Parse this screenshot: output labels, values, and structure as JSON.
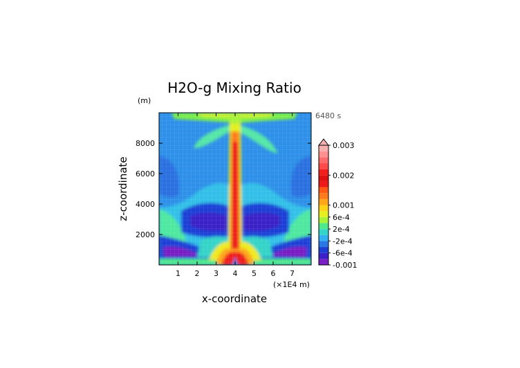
{
  "chart_data": {
    "type": "heatmap",
    "title": "H2O-g Mixing Ratio",
    "xlabel": "x-coordinate",
    "ylabel": "z-coordinate",
    "y_unit": "(m)",
    "x_unit": "(×1E4 m)",
    "time_label": "6480 s",
    "x_ticks": [
      "1",
      "2",
      "3",
      "4",
      "5",
      "6",
      "7"
    ],
    "y_ticks": [
      "2000",
      "4000",
      "6000",
      "8000"
    ],
    "xlim": [
      0,
      8
    ],
    "ylim": [
      0,
      10000
    ],
    "x_tick_values": [
      1,
      2,
      3,
      4,
      5,
      6,
      7
    ],
    "y_tick_values": [
      2000,
      4000,
      6000,
      8000
    ],
    "colorbar": {
      "labels": [
        "0.003",
        "0.002",
        "0.001",
        "6e-4",
        "2e-4",
        "-2e-4",
        "-6e-4",
        "-0.001"
      ],
      "label_levels": [
        0.003,
        0.002,
        0.001,
        0.0006,
        0.0002,
        -0.0002,
        -0.0006,
        -0.001
      ],
      "levels": [
        -0.001,
        -0.0008,
        -0.0006,
        -0.0004,
        -0.0002,
        0,
        0.0002,
        0.0004,
        0.0006,
        0.0008,
        0.001,
        0.0012,
        0.0014,
        0.0016,
        0.0018,
        0.002,
        0.0022,
        0.0024,
        0.0026,
        0.0028,
        0.003
      ],
      "colors": [
        "#7a1fc4",
        "#3a22c8",
        "#1d3fd6",
        "#2a78e6",
        "#33b0f0",
        "#36d4c8",
        "#4fe88a",
        "#a8f23a",
        "#e6f01e",
        "#ffd21a",
        "#ffa51a",
        "#ff7a1a",
        "#ff5a14",
        "#ee1a1a",
        "#dd0f0f",
        "#f21e1e",
        "#ff4a4a",
        "#ff6a6a",
        "#ff9090",
        "#f7b0b0"
      ]
    }
  }
}
